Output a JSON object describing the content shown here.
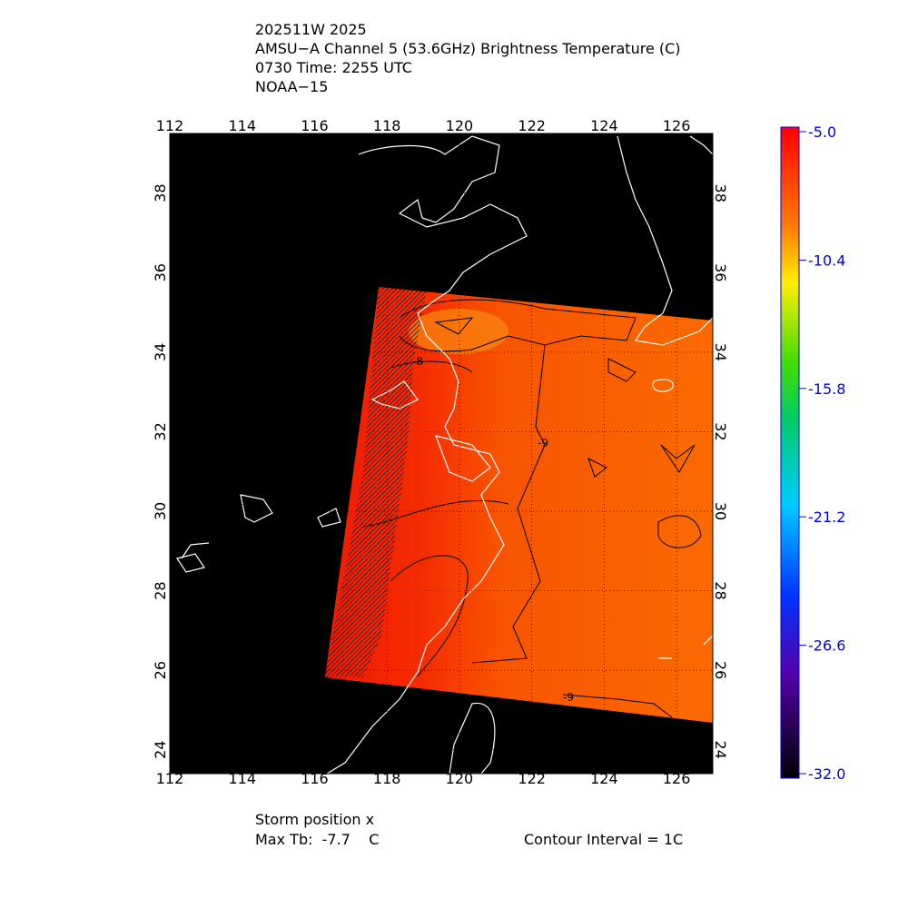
{
  "header": {
    "lines": [
      "202511W 2025",
      "AMSU−A Channel 5 (53.6GHz) Brightness Temperature (C)",
      "0730 Time: 2255 UTC",
      "NOAA−15"
    ]
  },
  "map": {
    "xlim": [
      112,
      127
    ],
    "ylim": [
      23.4,
      39.5
    ],
    "lon_ticks": [
      112,
      114,
      116,
      118,
      120,
      122,
      124,
      126
    ],
    "lat_ticks": [
      24,
      26,
      28,
      30,
      32,
      34,
      36,
      38
    ],
    "contour_labels": [
      "-8",
      "-9",
      "-9"
    ]
  },
  "colorbar": {
    "lim": [
      -32,
      -5
    ],
    "ticks": [
      {
        "value": -5,
        "label": "-5.0"
      },
      -10.4,
      -15.8,
      -21.2,
      -26.6,
      {
        "value": -32,
        "label": "-32.0"
      }
    ]
  },
  "footer": {
    "storm_position": "Storm position x",
    "max_tb": "Max Tb:  -7.7    C",
    "contour_interval": "Contour Interval = 1C"
  }
}
